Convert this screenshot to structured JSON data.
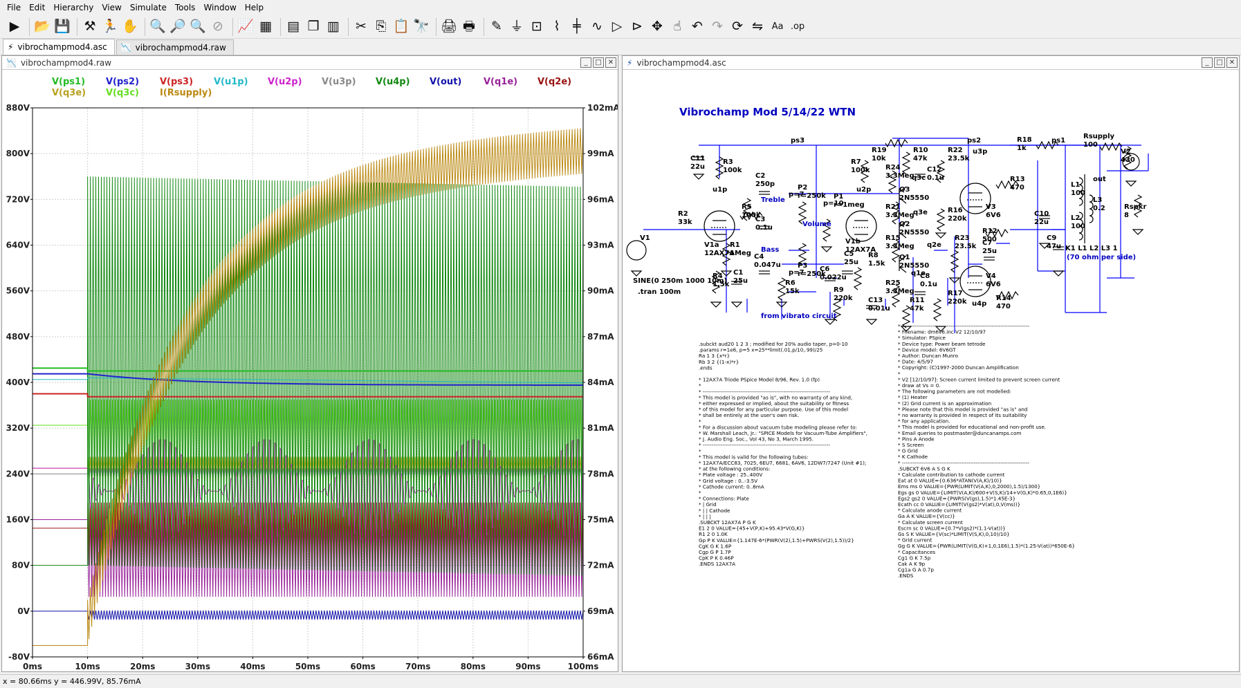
{
  "menu": [
    "File",
    "Edit",
    "Hierarchy",
    "View",
    "Simulate",
    "Tools",
    "Window",
    "Help"
  ],
  "toolbar": {
    "buttons": [
      "run-icon",
      "open-icon",
      "save-icon",
      "control-panel-icon",
      "halt-icon",
      "pan-icon",
      "zoom-in-icon",
      "zoom-full-icon",
      "zoom-out-icon",
      "zoom-cancel-icon",
      "autorange-icon",
      "grid-icon",
      "tile-horizontal-icon",
      "cascade-icon",
      "tile-vertical-icon",
      "cut-icon",
      "copy-icon",
      "paste-icon",
      "find-icon",
      "print-icon",
      "print-setup-icon",
      "wire-icon",
      "ground-icon",
      "label-icon",
      "resistor-icon",
      "capacitor-icon",
      "inductor-icon",
      "diode-icon",
      "component-icon",
      "move-icon",
      "drag-icon",
      "undo-icon",
      "redo-icon",
      "rotate-icon",
      "mirror-icon",
      "text-icon",
      "spice-directive-icon"
    ],
    "glyphs": [
      "▶",
      "📂",
      "💾",
      "⚒",
      "🏃",
      "✋",
      "🔍",
      "🔎",
      "🔍",
      "⊘",
      "📈",
      "▦",
      "▤",
      "❐",
      "▥",
      "✂",
      "⎘",
      "📋",
      "🔭",
      "🖨",
      "🖶",
      "✎",
      "⏚",
      "⊡",
      "⌇",
      "╪",
      "∿",
      "▷",
      "⊳",
      "✥",
      "☝",
      "↶",
      "↷",
      "⟳",
      "⇋",
      "Aa",
      ".op"
    ]
  },
  "tabs": [
    {
      "label": "vibrochampmod4.asc",
      "active": true
    },
    {
      "label": "vibrochampmod4.raw",
      "active": false
    }
  ],
  "wave_window": {
    "title": "vibrochampmod4.raw",
    "traces": [
      {
        "label": "V(ps1)",
        "color": "#22bb22"
      },
      {
        "label": "V(ps2)",
        "color": "#2222cc"
      },
      {
        "label": "V(ps3)",
        "color": "#cc2222"
      },
      {
        "label": "V(u1p)",
        "color": "#22b8c8"
      },
      {
        "label": "V(u2p)",
        "color": "#cc22cc"
      },
      {
        "label": "V(u3p)",
        "color": "#888888"
      },
      {
        "label": "V(u4p)",
        "color": "#118811"
      },
      {
        "label": "V(out)",
        "color": "#1111aa"
      },
      {
        "label": "V(q1e)",
        "color": "#992299"
      },
      {
        "label": "V(q2e)",
        "color": "#991111"
      },
      {
        "label": "V(q3e)",
        "color": "#b8a020"
      },
      {
        "label": "V(q3c)",
        "color": "#66dd22"
      },
      {
        "label": "I(Rsupply)",
        "color": "#bb8811"
      }
    ],
    "left_axis_ticks": [
      "880V",
      "800V",
      "720V",
      "640V",
      "560V",
      "480V",
      "400V",
      "320V",
      "240V",
      "160V",
      "80V",
      "0V",
      "-80V"
    ],
    "right_axis_ticks": [
      "102mA",
      "99mA",
      "96mA",
      "93mA",
      "90mA",
      "87mA",
      "84mA",
      "81mA",
      "78mA",
      "75mA",
      "72mA",
      "69mA",
      "66mA"
    ],
    "x_axis_ticks": [
      "0ms",
      "10ms",
      "20ms",
      "30ms",
      "40ms",
      "50ms",
      "60ms",
      "70ms",
      "80ms",
      "90ms",
      "100ms"
    ]
  },
  "schematic_window": {
    "title": "vibrochampmod4.asc",
    "heading": "Vibrochamp Mod 5/14/22 WTN",
    "net_labels": [
      "ps3",
      "ps2",
      "ps1",
      "u3p",
      "u1p",
      "u2p",
      "u4p",
      "out",
      "q3c",
      "q3e",
      "q2e",
      "q1e"
    ],
    "components": [
      {
        "name": "C11",
        "value": "22u"
      },
      {
        "name": "R3",
        "value": "100k"
      },
      {
        "name": "C2",
        "value": "250p"
      },
      {
        "name": "P2",
        "value": "r=250k"
      },
      {
        "name": "P1",
        "value": "r=1meg"
      },
      {
        "name": "R5",
        "value": "100k"
      },
      {
        "name": "C3",
        "value": "0.1u"
      },
      {
        "name": "C4",
        "value": "0.047u"
      },
      {
        "name": "R6",
        "value": "15k"
      },
      {
        "name": "P3",
        "value": "r=250k"
      },
      {
        "name": "R2",
        "value": "33k"
      },
      {
        "name": "R1",
        "value": "1Meg"
      },
      {
        "name": "V1",
        "value": ""
      },
      {
        "name": "R4",
        "value": "1.5k"
      },
      {
        "name": "C1",
        "value": "25u"
      },
      {
        "name": "V1a",
        "value": "12AX7A"
      },
      {
        "name": "V1b",
        "value": "12AX7A"
      },
      {
        "name": "R7",
        "value": "100k"
      },
      {
        "name": "R19",
        "value": "10k"
      },
      {
        "name": "R10",
        "value": "47k"
      },
      {
        "name": "R24",
        "value": "3.3Meg"
      },
      {
        "name": "C12",
        "value": "0.1u"
      },
      {
        "name": "Q3",
        "value": "2N5550"
      },
      {
        "name": "R21",
        "value": "3.3Meg"
      },
      {
        "name": "Q2",
        "value": "2N5550"
      },
      {
        "name": "R15",
        "value": "3.3Meg"
      },
      {
        "name": "Q1",
        "value": "2N5550"
      },
      {
        "name": "C8",
        "value": "0.1u"
      },
      {
        "name": "R25",
        "value": "3.3Meg"
      },
      {
        "name": "R11",
        "value": "47k"
      },
      {
        "name": "R8",
        "value": "1.5k"
      },
      {
        "name": "C5",
        "value": "25u"
      },
      {
        "name": "C6",
        "value": "0.022u"
      },
      {
        "name": "R9",
        "value": "220k"
      },
      {
        "name": "C13",
        "value": "0.01u"
      },
      {
        "name": "R22",
        "value": "23.5k"
      },
      {
        "name": "R16",
        "value": "220k"
      },
      {
        "name": "R13",
        "value": "470"
      },
      {
        "name": "V3",
        "value": "6V6"
      },
      {
        "name": "R12",
        "value": "500"
      },
      {
        "name": "C7",
        "value": "25u"
      },
      {
        "name": "R23",
        "value": "23.5k"
      },
      {
        "name": "V4",
        "value": "6V6"
      },
      {
        "name": "R14",
        "value": "470"
      },
      {
        "name": "R17",
        "value": "220k"
      },
      {
        "name": "R18",
        "value": "1k"
      },
      {
        "name": "Rsupply",
        "value": "100"
      },
      {
        "name": "V2",
        "value": "430"
      },
      {
        "name": "C10",
        "value": "22u"
      },
      {
        "name": "C9",
        "value": "47u"
      },
      {
        "name": "L1",
        "value": "100"
      },
      {
        "name": "L2",
        "value": "100"
      },
      {
        "name": "L3",
        "value": "0.2"
      },
      {
        "name": "Rspkr",
        "value": "8"
      }
    ],
    "extra_labels": {
      "p2_p": "p=7",
      "p1_p": "p=10",
      "p3_p": "p=7",
      "treble": "Treble",
      "volume": "Volume",
      "bass": "Bass",
      "source": "SINE(0 250m 1000 10m)",
      "tran": ".tran 100m",
      "vibrato": "from vibrato circuit",
      "k1": "K1 L1 L2 L3 1",
      "ohm": "(70 ohm per side)"
    },
    "left_text": [
      ".subckt aud20 1 2 3 ; modified for 20% audio taper, p=0-10",
      ".params r=1e6, p=5  x=25**limit(.01,p/10,.99)/25",
      "Ra 1 3 {x*r}",
      "Rb 3 2 {(1-x)*r}",
      ".ends",
      "",
      "* 12AX7A Triode PSpice Model                    8/96, Rev. 1.0  (fp)",
      "*",
      "* -----------------------------------------------------------------------",
      "* This model is provided \"as is\", with no warranty of any kind,",
      "* either expressed or implied, about the suitability or fitness",
      "* of this model for any particular purpose.  Use of this model",
      "* shall be entirely at the user's own risk.",
      "*",
      "* For a discussion about vacuum tube modeling please refer to:",
      "* W. Marshall Leach, Jr.: \"SPICE Models for Vacuum-Tube Amplifiers\",",
      "* J. Audio Eng. Soc., Vol 43, No 3, March 1995.",
      "* -----------------------------------------------------------------------",
      "*",
      "* This model is valid for the following tubes:",
      "* 12AX7A/ECC83, 7025, 6EU7, 6681, 6AV6, 12DW7/7247 (Unit #1);",
      "* at the following conditions:",
      "* Plate voltage  : 25..400V",
      "* Grid voltage   : 0..-3.5V",
      "* Cathode current:  0..8mA",
      "*",
      "* Connections: Plate",
      "*              | Grid",
      "*              | | Cathode",
      "*              | | |",
      ".SUBCKT 12AX7A P G K",
      "E1  2  0  VALUE={45+V(P,K)+95.43*V(G,K)}",
      "R1  2  0  1.0K",
      "Gp  P  K  VALUE={1.147E-6*(PWR(V(2),1.5)+PWRS(V(2),1.5))/2}",
      "CgK G  K  1.6P",
      "Cgp G  P  1.7P",
      "CpK P  K  0.46P",
      ".ENDS 12AX7A"
    ],
    "right_text": [
      "* -----------------------------------------------------------------------",
      "* Filename:          dm6v6.inc  V2 12/10/97",
      "* Simulator:         PSpice",
      "* Device type:       Power beam tetrode",
      "* Device model:      6V6GT",
      "* Author:            Duncan Munro",
      "* Date:              4/5/97",
      "* Copyright:         (C)1997-2000 Duncan Amplification",
      "*",
      "* V2 [12/10/97]: Screen current limited to prevent screen current",
      "*                draw at Vs = 0.",
      "* The following parameters are not modelled:",
      "*   (1) Heater",
      "*   (2) Grid current is an approximation",
      "* Please note that this model is provided \"as is\" and",
      "* no warranty is provided in respect of its suitability",
      "* for any application.",
      "* This model is provided for educational and non-profit use.",
      "* Email queries to postmaster@duncanamps.com",
      "* Pins  A  Anode",
      "*       S  Screen",
      "*       G  Grid",
      "*       K  Cathode",
      "* -----------------------------------------------------------------------",
      ".SUBCKT 6V6 A S G K",
      "* Calculate contribution to cathode current",
      "Eat     at    0      VALUE={0.636*ATAN(V(A,K)/10)}",
      "Ems     ms    0      VALUE={PWR(LIMIT(V(A,K),0,2000),1.5)/1300}",
      "Egs     gs    0      VALUE={LIMIT(V(A,K)/600+V(S,K)/14+V(G,K)*0.65,0,1E6)}",
      "Egs2    gs2   0      VALUE={PWRS(V(gs),1.5)*1.45E-3}",
      "Ecath   cc    0      VALUE={LIMIT(V(gs2)*V(at),0,V(ms))}",
      "* Calculate anode current",
      "Ga      A     K      VALUE={V(cc)}",
      "* Calculate screen current",
      "Escrn   sc    0      VALUE={0.7*V(gs2)*(1.1-V(at))}",
      "Gs      S     K      VALUE={V(sc)*LIMIT(V(S,K),0,10)/10}",
      "* Grid current",
      "Gg      G     K      VALUE={PWR(LIMIT(V(G,K)+1,0,1E6),1.5)*(1.25-V(at))*650E-6}",
      "* Capacitances",
      "Cg1     G     K      7.5p",
      "Cak     A     K      9p",
      "Cg1a    G     A      0.7p",
      ".ENDS"
    ]
  },
  "status": {
    "cursor_readout": "x = 80.66ms    y = 446.99V, 85.76mA"
  }
}
